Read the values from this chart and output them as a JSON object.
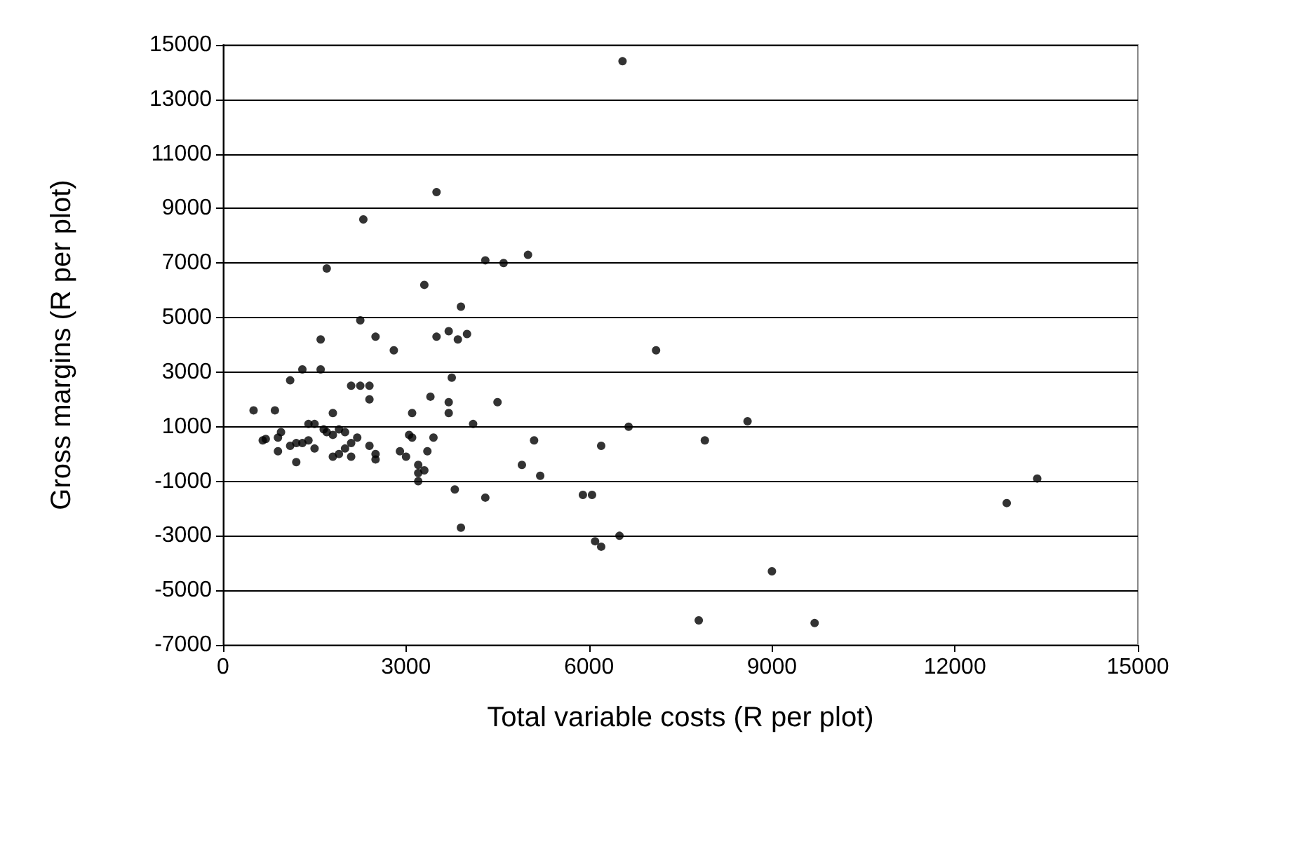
{
  "chart_data": {
    "type": "scatter",
    "xlabel": "Total variable costs (R per plot)",
    "ylabel": "Gross margins (R per plot)",
    "xlim": [
      0,
      15000
    ],
    "xticks": [
      0,
      3000,
      6000,
      9000,
      12000,
      15000
    ],
    "ylim": [
      -7000,
      15000
    ],
    "yticks": [
      -7000,
      -5000,
      -3000,
      -1000,
      1000,
      3000,
      5000,
      7000,
      9000,
      11000,
      13000,
      15000
    ],
    "grid": "y",
    "marker": "circle",
    "color": "#000000",
    "x": [
      500,
      650,
      700,
      850,
      900,
      900,
      950,
      1100,
      1100,
      1200,
      1200,
      1300,
      1300,
      1400,
      1400,
      1500,
      1500,
      1600,
      1600,
      1650,
      1700,
      1700,
      1800,
      1800,
      1800,
      1900,
      1900,
      2000,
      2000,
      2100,
      2100,
      2100,
      2200,
      2250,
      2250,
      2300,
      2400,
      2400,
      2400,
      2500,
      2500,
      2500,
      2800,
      2900,
      3000,
      3050,
      3100,
      3100,
      3200,
      3200,
      3200,
      3300,
      3300,
      3350,
      3400,
      3450,
      3500,
      3500,
      3700,
      3700,
      3700,
      3750,
      3800,
      3850,
      3900,
      3900,
      4000,
      4100,
      4300,
      4300,
      4500,
      4600,
      4900,
      5000,
      5100,
      5200,
      5900,
      6050,
      6100,
      6200,
      6200,
      6500,
      6550,
      6650,
      7100,
      7800,
      7900,
      8600,
      9000,
      9700,
      12850,
      13350
    ],
    "values": [
      1600,
      500,
      550,
      1600,
      100,
      600,
      800,
      2700,
      300,
      -300,
      400,
      3100,
      400,
      1100,
      500,
      1100,
      200,
      4200,
      3100,
      900,
      6800,
      800,
      -100,
      1500,
      700,
      0,
      900,
      800,
      200,
      2500,
      -100,
      400,
      600,
      4900,
      2500,
      8600,
      2500,
      2000,
      300,
      4300,
      0,
      -200,
      3800,
      100,
      -100,
      700,
      1500,
      600,
      -400,
      -700,
      -1000,
      6200,
      -600,
      100,
      2100,
      600,
      9600,
      4300,
      4500,
      1900,
      1500,
      2800,
      -1300,
      4200,
      5400,
      -2700,
      4400,
      1100,
      7100,
      -1600,
      1900,
      7000,
      -400,
      7300,
      500,
      -800,
      -1500,
      -1500,
      -3200,
      -3400,
      300,
      -3000,
      14400,
      1000,
      3800,
      -6100,
      500,
      1200,
      -4300,
      -6200,
      -1800,
      -900
    ]
  }
}
